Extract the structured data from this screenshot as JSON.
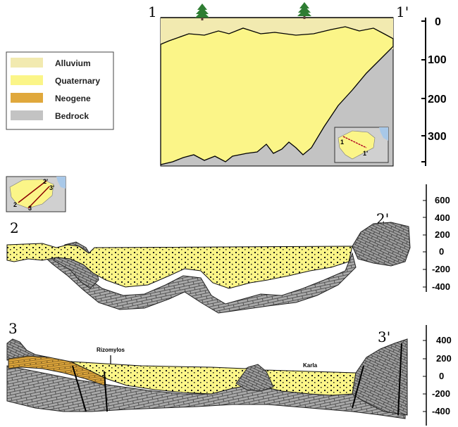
{
  "legend": {
    "items": [
      {
        "label": "Alluvium",
        "color": "#f2eab0"
      },
      {
        "label": "Quaternary",
        "color": "#fbf588"
      },
      {
        "label": "Neogene",
        "color": "#e0a83c"
      },
      {
        "label": "Bedrock",
        "color": "#c3c3c3"
      }
    ]
  },
  "section1": {
    "label_left": "1",
    "label_right": "1'",
    "depth_ticks": [
      "0",
      "100",
      "200",
      "300"
    ],
    "inset": {
      "label_start": "1",
      "label_end": "1'"
    }
  },
  "section2": {
    "label_left": "2",
    "label_right": "2'",
    "elevation_ticks": [
      "600",
      "400",
      "200",
      "0",
      "-200",
      "-400"
    ],
    "inset": {
      "label_a": "2",
      "label_b": "2'",
      "label_c": "3",
      "label_d": "3'"
    }
  },
  "section3": {
    "label_left": "3",
    "label_right": "3'",
    "elevation_ticks": [
      "400",
      "200",
      "0",
      "-200",
      "-400"
    ],
    "place_left": "Rizomylos",
    "place_right": "Karla"
  },
  "colors": {
    "alluvium": "#f2eab0",
    "quaternary": "#fbf588",
    "neogene": "#e0a83c",
    "bedrock": "#c3c3c3",
    "bedrock_dark": "#9a9a9a",
    "tree": "#2e7d32",
    "sea": "#a8c8e8"
  }
}
